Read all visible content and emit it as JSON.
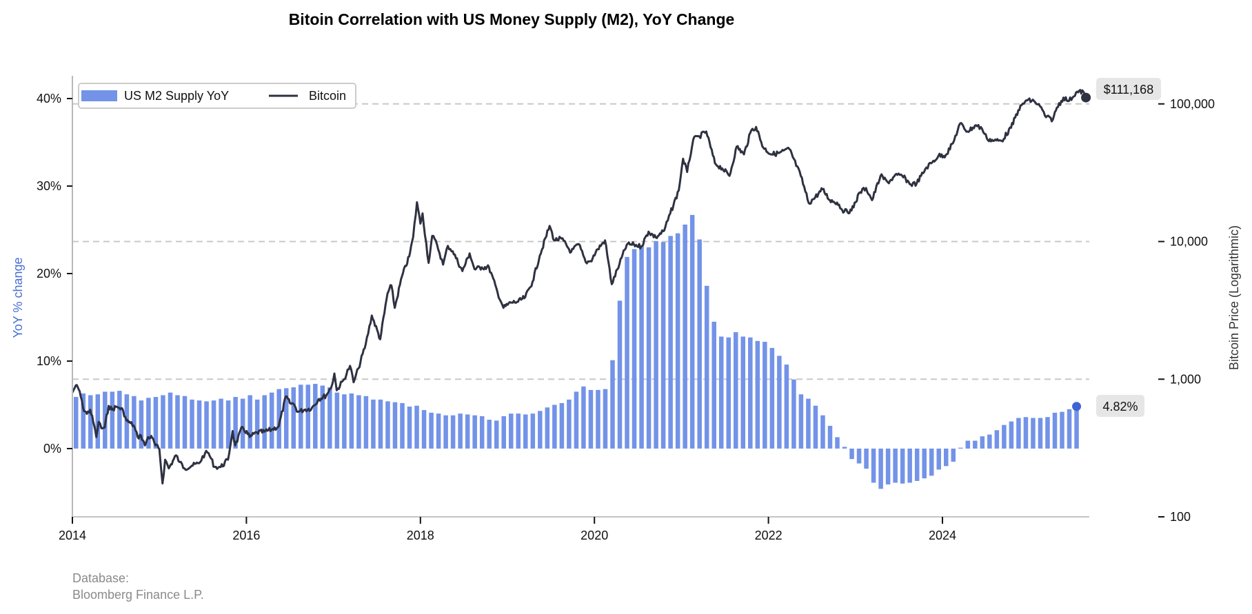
{
  "chart_data": {
    "type": "bar+line",
    "title": "Bitoin Correlation with US Money Supply (M2), YoY Change",
    "xlabel": "",
    "ylabel_left": "YoY % change",
    "ylabel_right": "Bitcoin Price (Logarithmic)",
    "x_range": [
      "2014-01",
      "2025-09"
    ],
    "x_ticks": [
      "2014",
      "2016",
      "2018",
      "2020",
      "2022",
      "2024"
    ],
    "y_left_range": [
      -7.8,
      42.6
    ],
    "y_left_ticks": [
      "0%",
      "10%",
      "20%",
      "30%",
      "40%"
    ],
    "y_left_tick_values": [
      0,
      10,
      20,
      30,
      40
    ],
    "y_right_scale": "log",
    "y_right_range": [
      100,
      160000
    ],
    "y_right_ticks": [
      "100",
      "1,000",
      "10,000",
      "100,000"
    ],
    "y_right_tick_values": [
      100,
      1000,
      10000,
      100000
    ],
    "grid": "horizontal dashed at right-axis ticks",
    "legend": {
      "placement": "top-left",
      "entries": [
        {
          "label": "US M2 Supply YoY",
          "type": "bar",
          "color": "#7393e8"
        },
        {
          "label": "Bitcoin",
          "type": "line",
          "color": "#2e3140"
        }
      ]
    },
    "series": [
      {
        "name": "US M2 Supply YoY",
        "type": "bar",
        "axis": "left",
        "unit": "%",
        "start": "2014-01",
        "frequency": "monthly",
        "color": "#7393e8",
        "values": [
          5.9,
          6.3,
          6.1,
          6.2,
          6.5,
          6.5,
          6.6,
          6.2,
          6.0,
          5.5,
          5.8,
          5.9,
          6.1,
          6.4,
          6.1,
          6.0,
          5.6,
          5.5,
          5.4,
          5.5,
          5.7,
          5.5,
          5.9,
          5.7,
          6.1,
          5.6,
          6.1,
          6.4,
          6.8,
          6.9,
          7.0,
          7.3,
          7.3,
          7.4,
          7.2,
          7.0,
          6.4,
          6.2,
          6.3,
          6.1,
          6.0,
          5.6,
          5.6,
          5.4,
          5.3,
          5.2,
          4.8,
          4.9,
          4.4,
          4.1,
          4.0,
          3.8,
          3.8,
          4.0,
          3.9,
          3.8,
          3.7,
          3.3,
          3.2,
          3.7,
          4.0,
          4.0,
          3.9,
          4.0,
          4.3,
          4.7,
          5.0,
          5.2,
          5.6,
          6.5,
          7.1,
          6.7,
          6.7,
          6.8,
          10.1,
          16.9,
          21.9,
          22.8,
          23.2,
          23.0,
          23.7,
          23.6,
          24.3,
          24.6,
          25.6,
          26.7,
          23.9,
          18.6,
          14.5,
          12.8,
          12.7,
          13.3,
          12.8,
          12.7,
          12.3,
          12.2,
          11.5,
          10.6,
          9.6,
          7.9,
          6.2,
          5.7,
          4.9,
          3.8,
          2.6,
          1.3,
          0.2,
          -1.2,
          -1.7,
          -2.3,
          -3.9,
          -4.6,
          -4.1,
          -3.9,
          -4.0,
          -3.9,
          -3.7,
          -3.4,
          -3.1,
          -2.4,
          -2.0,
          -1.5,
          0.1,
          0.9,
          0.9,
          1.4,
          1.6,
          2.1,
          2.7,
          3.1,
          3.5,
          3.6,
          3.5,
          3.5,
          3.6,
          4.1,
          4.2,
          4.5,
          4.82
        ]
      },
      {
        "name": "Bitcoin",
        "type": "line",
        "axis": "right",
        "unit": "USD",
        "frequency": "approx. semi-monthly",
        "color": "#2e3140",
        "points": [
          [
            "2014-01-01",
            800
          ],
          [
            "2014-01-15",
            900
          ],
          [
            "2014-02-01",
            820
          ],
          [
            "2014-02-15",
            620
          ],
          [
            "2014-03-01",
            560
          ],
          [
            "2014-03-15",
            600
          ],
          [
            "2014-04-01",
            460
          ],
          [
            "2014-04-10",
            380
          ],
          [
            "2014-04-20",
            490
          ],
          [
            "2014-05-01",
            440
          ],
          [
            "2014-05-15",
            445
          ],
          [
            "2014-06-01",
            640
          ],
          [
            "2014-06-15",
            600
          ],
          [
            "2014-07-01",
            630
          ],
          [
            "2014-07-15",
            620
          ],
          [
            "2014-08-01",
            590
          ],
          [
            "2014-08-15",
            500
          ],
          [
            "2014-09-01",
            480
          ],
          [
            "2014-09-15",
            460
          ],
          [
            "2014-10-01",
            380
          ],
          [
            "2014-10-15",
            390
          ],
          [
            "2014-11-01",
            330
          ],
          [
            "2014-11-15",
            380
          ],
          [
            "2014-12-01",
            375
          ],
          [
            "2014-12-15",
            330
          ],
          [
            "2015-01-01",
            310
          ],
          [
            "2015-01-14",
            175
          ],
          [
            "2015-01-25",
            260
          ],
          [
            "2015-02-10",
            225
          ],
          [
            "2015-03-10",
            280
          ],
          [
            "2015-03-25",
            250
          ],
          [
            "2015-04-15",
            225
          ],
          [
            "2015-05-15",
            235
          ],
          [
            "2015-06-15",
            245
          ],
          [
            "2015-07-10",
            290
          ],
          [
            "2015-07-25",
            290
          ],
          [
            "2015-08-20",
            230
          ],
          [
            "2015-09-15",
            230
          ],
          [
            "2015-10-15",
            260
          ],
          [
            "2015-11-04",
            420
          ],
          [
            "2015-11-15",
            330
          ],
          [
            "2015-12-15",
            450
          ],
          [
            "2016-01-15",
            380
          ],
          [
            "2016-02-15",
            410
          ],
          [
            "2016-03-15",
            415
          ],
          [
            "2016-04-15",
            430
          ],
          [
            "2016-05-15",
            455
          ],
          [
            "2016-06-15",
            750
          ],
          [
            "2016-07-01",
            670
          ],
          [
            "2016-07-15",
            665
          ],
          [
            "2016-08-05",
            580
          ],
          [
            "2016-09-01",
            600
          ],
          [
            "2016-10-01",
            615
          ],
          [
            "2016-11-01",
            720
          ],
          [
            "2016-12-01",
            760
          ],
          [
            "2016-12-25",
            900
          ],
          [
            "2017-01-05",
            1100
          ],
          [
            "2017-01-15",
            830
          ],
          [
            "2017-02-15",
            1000
          ],
          [
            "2017-03-10",
            1250
          ],
          [
            "2017-03-25",
            950
          ],
          [
            "2017-04-15",
            1200
          ],
          [
            "2017-05-15",
            1800
          ],
          [
            "2017-06-10",
            2900
          ],
          [
            "2017-07-15",
            1950
          ],
          [
            "2017-08-15",
            4200
          ],
          [
            "2017-09-01",
            4800
          ],
          [
            "2017-09-15",
            3300
          ],
          [
            "2017-10-15",
            5600
          ],
          [
            "2017-11-15",
            7800
          ],
          [
            "2017-12-01",
            10800
          ],
          [
            "2017-12-17",
            19300
          ],
          [
            "2018-01-01",
            13500
          ],
          [
            "2018-01-10",
            16000
          ],
          [
            "2018-02-05",
            7000
          ],
          [
            "2018-02-20",
            11000
          ],
          [
            "2018-03-10",
            9500
          ],
          [
            "2018-04-05",
            6800
          ],
          [
            "2018-04-25",
            9300
          ],
          [
            "2018-05-15",
            8500
          ],
          [
            "2018-06-25",
            6100
          ],
          [
            "2018-07-25",
            8200
          ],
          [
            "2018-08-15",
            6300
          ],
          [
            "2018-09-15",
            6500
          ],
          [
            "2018-10-15",
            6500
          ],
          [
            "2018-11-20",
            4300
          ],
          [
            "2018-12-15",
            3300
          ],
          [
            "2019-01-15",
            3600
          ],
          [
            "2019-02-15",
            3650
          ],
          [
            "2019-03-15",
            3950
          ],
          [
            "2019-04-15",
            5100
          ],
          [
            "2019-05-15",
            7900
          ],
          [
            "2019-06-26",
            13000
          ],
          [
            "2019-07-15",
            10200
          ],
          [
            "2019-08-15",
            10500
          ],
          [
            "2019-09-25",
            8400
          ],
          [
            "2019-10-26",
            9600
          ],
          [
            "2019-11-25",
            7100
          ],
          [
            "2019-12-15",
            7200
          ],
          [
            "2020-01-15",
            8800
          ],
          [
            "2020-02-15",
            10200
          ],
          [
            "2020-03-13",
            4900
          ],
          [
            "2020-04-15",
            6900
          ],
          [
            "2020-05-15",
            9500
          ],
          [
            "2020-06-15",
            9500
          ],
          [
            "2020-07-15",
            9200
          ],
          [
            "2020-08-15",
            11800
          ],
          [
            "2020-09-15",
            10700
          ],
          [
            "2020-10-20",
            12000
          ],
          [
            "2020-11-15",
            16000
          ],
          [
            "2020-12-20",
            23500
          ],
          [
            "2021-01-08",
            40000
          ],
          [
            "2021-01-25",
            32000
          ],
          [
            "2021-02-20",
            55000
          ],
          [
            "2021-03-15",
            58000
          ],
          [
            "2021-04-14",
            63000
          ],
          [
            "2021-05-20",
            37000
          ],
          [
            "2021-06-20",
            34000
          ],
          [
            "2021-07-20",
            30000
          ],
          [
            "2021-08-20",
            49000
          ],
          [
            "2021-09-20",
            43000
          ],
          [
            "2021-10-20",
            64000
          ],
          [
            "2021-11-10",
            68000
          ],
          [
            "2021-12-10",
            48000
          ],
          [
            "2022-01-15",
            43000
          ],
          [
            "2022-02-15",
            44000
          ],
          [
            "2022-03-28",
            47000
          ],
          [
            "2022-05-15",
            30000
          ],
          [
            "2022-06-18",
            19000
          ],
          [
            "2022-07-15",
            21000
          ],
          [
            "2022-08-15",
            24000
          ],
          [
            "2022-09-15",
            20000
          ],
          [
            "2022-10-15",
            19200
          ],
          [
            "2022-11-15",
            16500
          ],
          [
            "2022-12-15",
            16800
          ],
          [
            "2023-01-20",
            22800
          ],
          [
            "2023-02-15",
            24500
          ],
          [
            "2023-03-10",
            20000
          ],
          [
            "2023-04-15",
            30000
          ],
          [
            "2023-05-15",
            27000
          ],
          [
            "2023-06-25",
            30500
          ],
          [
            "2023-07-15",
            30000
          ],
          [
            "2023-08-20",
            26000
          ],
          [
            "2023-09-15",
            26500
          ],
          [
            "2023-10-25",
            34500
          ],
          [
            "2023-11-15",
            37000
          ],
          [
            "2023-12-15",
            42000
          ],
          [
            "2024-01-15",
            42500
          ],
          [
            "2024-02-15",
            52000
          ],
          [
            "2024-03-14",
            72000
          ],
          [
            "2024-04-15",
            63000
          ],
          [
            "2024-05-20",
            70000
          ],
          [
            "2024-06-15",
            66000
          ],
          [
            "2024-07-05",
            56000
          ],
          [
            "2024-08-05",
            54000
          ],
          [
            "2024-09-06",
            54000
          ],
          [
            "2024-10-15",
            67000
          ],
          [
            "2024-11-15",
            90000
          ],
          [
            "2024-12-17",
            106000
          ],
          [
            "2025-01-20",
            105000
          ],
          [
            "2025-02-15",
            96000
          ],
          [
            "2025-03-10",
            80000
          ],
          [
            "2025-04-08",
            77000
          ],
          [
            "2025-04-25",
            94000
          ],
          [
            "2025-05-22",
            111000
          ],
          [
            "2025-06-15",
            105000
          ],
          [
            "2025-07-14",
            121000
          ],
          [
            "2025-08-14",
            123000
          ],
          [
            "2025-08-25",
            111168
          ]
        ]
      }
    ],
    "annotations": [
      {
        "label": "$111,168",
        "series": "Bitcoin",
        "value": 111168,
        "date": "2025-08-25"
      },
      {
        "label": "4.82%",
        "series": "US M2 Supply YoY",
        "value": 4.82,
        "date": "2025-07"
      }
    ],
    "source": [
      "Database:",
      "Bloomberg Finance L.P."
    ]
  }
}
